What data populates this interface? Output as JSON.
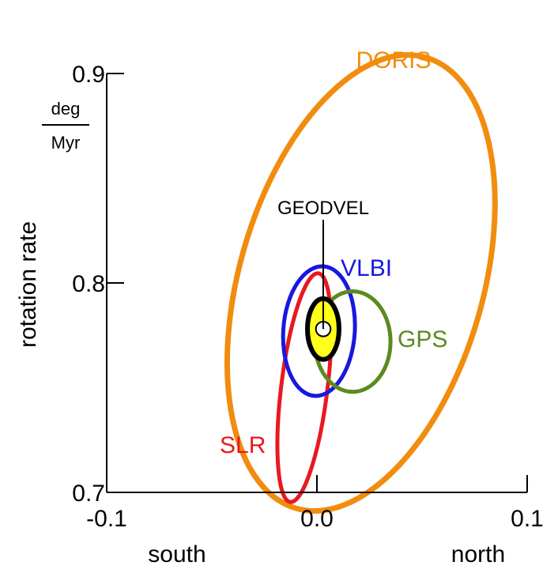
{
  "chart_data": {
    "type": "scatter",
    "title": "",
    "xlabel": "",
    "ylabel": "rotation rate",
    "y_unit": {
      "numerator": "deg",
      "denominator": "Myr"
    },
    "x_ticks": [
      "-0.1",
      "0.0",
      "0.1"
    ],
    "y_ticks": [
      "0.7",
      "0.8",
      "0.9"
    ],
    "x_direction_labels": {
      "left": "south",
      "right": "north"
    },
    "xlim": [
      -0.1,
      0.1
    ],
    "ylim": [
      0.7,
      0.9
    ],
    "grid": false,
    "legend": "none",
    "series": [
      {
        "name": "DORIS",
        "color": "#f28c0f",
        "center": [
          0.021,
          0.8
        ],
        "semi_axes": [
          0.058,
          0.112
        ],
        "rotation_deg": 16,
        "stroke": 7
      },
      {
        "name": "SLR",
        "color": "#e8191f",
        "center": [
          -0.006,
          0.75
        ],
        "semi_axes": [
          0.011,
          0.055
        ],
        "rotation_deg": 7,
        "stroke": 5
      },
      {
        "name": "VLBI",
        "color": "#1818e0",
        "center": [
          0.001,
          0.777
        ],
        "semi_axes": [
          0.017,
          0.031
        ],
        "rotation_deg": 4,
        "stroke": 5
      },
      {
        "name": "GPS",
        "color": "#5c8a1f",
        "center": [
          0.017,
          0.772
        ],
        "semi_axes": [
          0.018,
          0.024
        ],
        "rotation_deg": 0,
        "stroke": 5
      }
    ],
    "geodvel": {
      "name": "GEODVEL",
      "center": [
        0.003,
        0.778
      ],
      "outer": {
        "semi_axes": [
          0.0075,
          0.0145
        ],
        "fill": "#ffff1a",
        "stroke_color": "#000000"
      },
      "inner_radius": 0.0035
    }
  }
}
